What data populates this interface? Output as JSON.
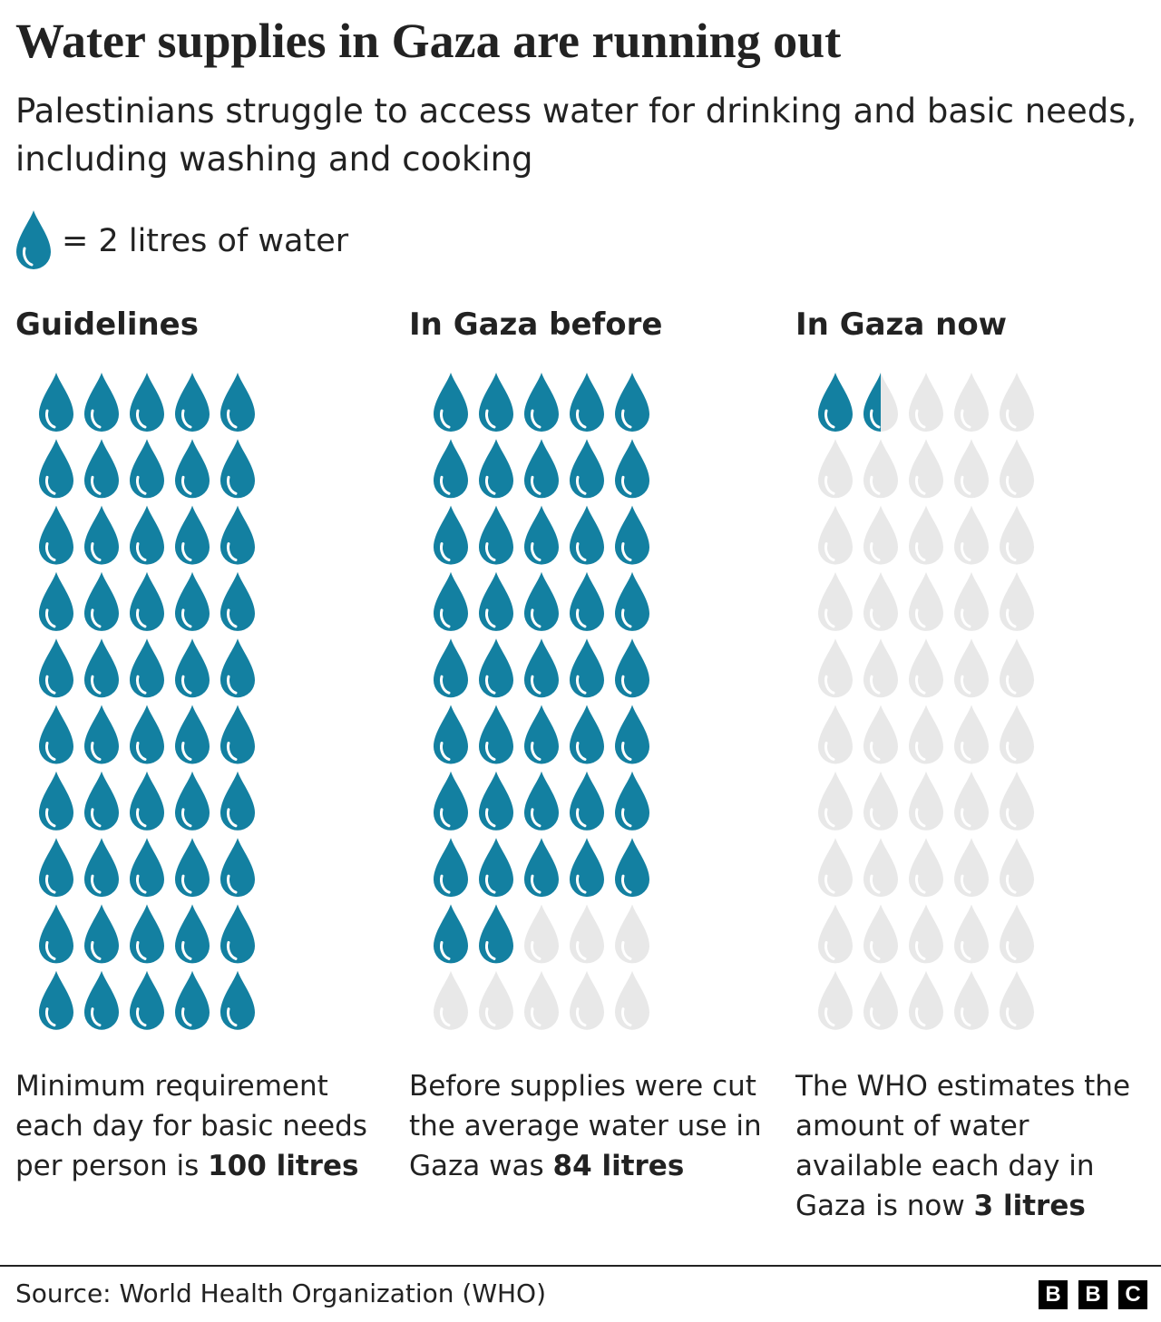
{
  "title": "Water supplies in Gaza are running out",
  "subtitle": "Palestinians struggle to access water for drinking and basic needs, including washing and cooking",
  "legend": "= 2 litres of water",
  "unit": 2,
  "chart_data": [
    {
      "type": "pictogram",
      "title": "Guidelines",
      "values": [
        100
      ],
      "value_labels": [
        "100 litres"
      ],
      "caption": "Minimum requirement each day for basic needs per person is",
      "color": "#1380a1",
      "empty_color": "#e8e8e8"
    },
    {
      "type": "pictogram",
      "title": "In Gaza before",
      "values": [
        84
      ],
      "value_labels": [
        "84 litres"
      ],
      "caption": "Before supplies were cut the average water use in Gaza was",
      "color": "#1380a1",
      "empty_color": "#e8e8e8"
    },
    {
      "type": "pictogram",
      "title": "In Gaza now",
      "values": [
        3
      ],
      "value_labels": [
        "3 litres"
      ],
      "caption": "The WHO estimates the amount of water available each day in Gaza is now",
      "color": "#1380a1",
      "empty_color": "#e8e8e8"
    }
  ],
  "source": "Source: World Health Organization (WHO)",
  "logo": [
    "B",
    "B",
    "C"
  ]
}
